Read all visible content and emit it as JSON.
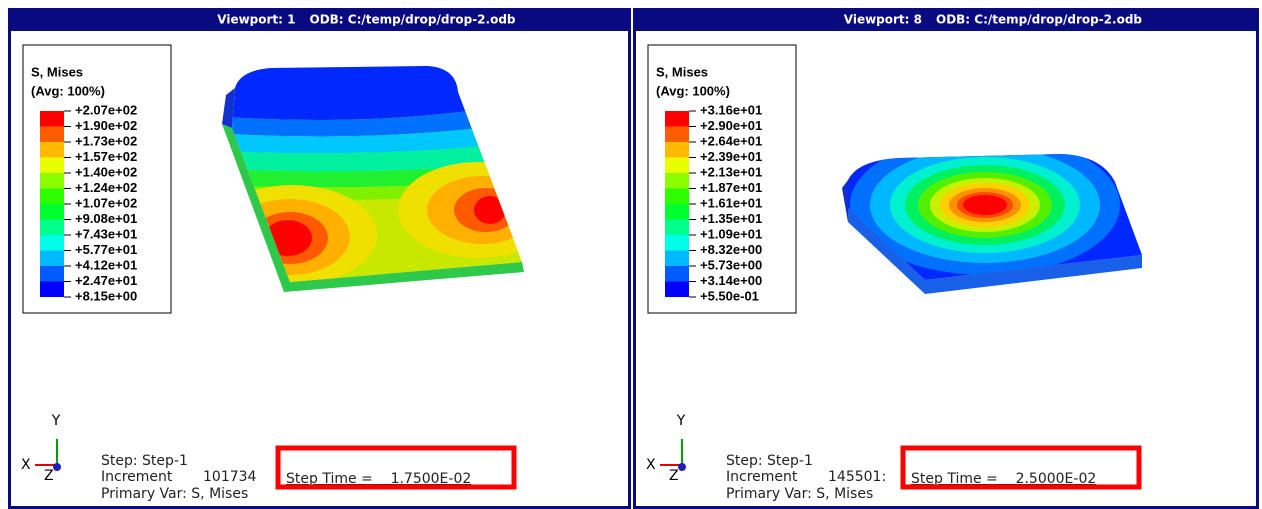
{
  "viewports": [
    {
      "title": "Viewport: 1",
      "odb": "ODB: C:/temp/drop/drop-2.odb",
      "legend": {
        "title": "S, Mises",
        "subtitle": "(Avg: 100%)",
        "labels": [
          "+2.07e+02",
          "+1.90e+02",
          "+1.73e+02",
          "+1.57e+02",
          "+1.40e+02",
          "+1.24e+02",
          "+1.07e+02",
          "+9.08e+01",
          "+7.43e+01",
          "+5.77e+01",
          "+4.12e+01",
          "+2.47e+01",
          "+8.15e+00"
        ]
      },
      "triad": {
        "x": "X",
        "y": "Y",
        "z": "Z"
      },
      "status": {
        "step": "Step: Step-1",
        "increment": "Increment",
        "increment_value": "101734",
        "step_time": "Step Time =    1.7500E-02",
        "primary": "Primary Var: S, Mises"
      }
    },
    {
      "title": "Viewport: 8",
      "odb": "ODB: C:/temp/drop/drop-2.odb",
      "legend": {
        "title": "S, Mises",
        "subtitle": "(Avg: 100%)",
        "labels": [
          "+3.16e+01",
          "+2.90e+01",
          "+2.64e+01",
          "+2.39e+01",
          "+2.13e+01",
          "+1.87e+01",
          "+1.61e+01",
          "+1.35e+01",
          "+1.09e+01",
          "+8.32e+00",
          "+5.73e+00",
          "+3.14e+00",
          "+5.50e-01"
        ]
      },
      "triad": {
        "x": "X",
        "y": "Y",
        "z": "Z"
      },
      "status": {
        "step": "Step: Step-1",
        "increment": "Increment",
        "increment_value": "145501:",
        "step_time": "Step Time =    2.5000E-02",
        "primary": "Primary Var: S, Mises"
      }
    }
  ]
}
